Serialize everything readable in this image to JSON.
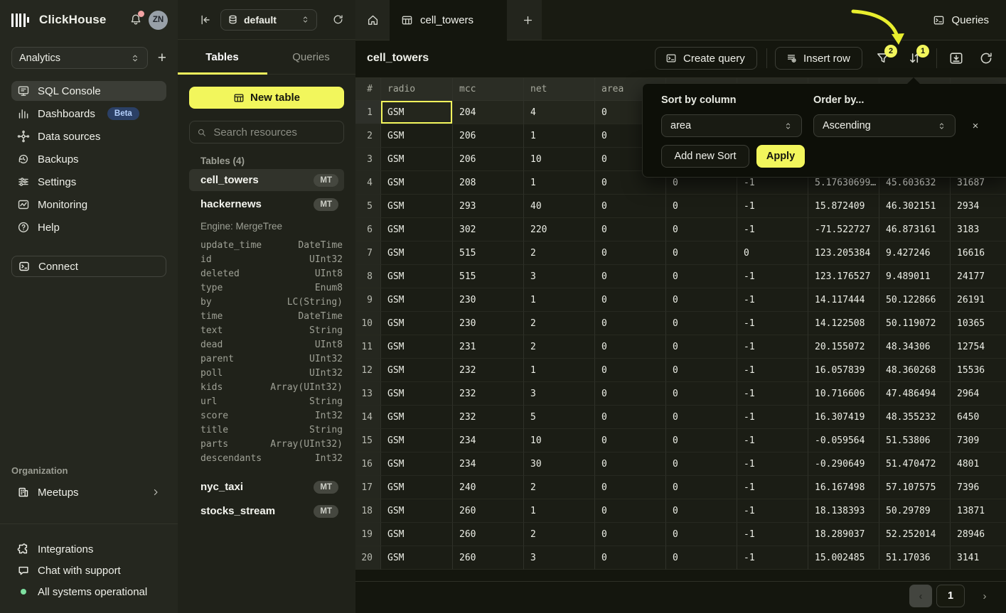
{
  "colors": {
    "accent": "#f2f65c",
    "beta_badge_bg": "#2b4066",
    "status_green": "#7ee0a0",
    "annotation_arrow": "#e8ee2e"
  },
  "brand": {
    "name": "ClickHouse",
    "avatar": "ZN",
    "workspace": "Analytics"
  },
  "sidebar": {
    "items": [
      {
        "label": "SQL Console",
        "icon": "sql-console-icon",
        "active": true
      },
      {
        "label": "Dashboards",
        "icon": "dashboards-icon",
        "badge": "Beta"
      },
      {
        "label": "Data sources",
        "icon": "data-sources-icon"
      },
      {
        "label": "Backups",
        "icon": "backups-icon"
      },
      {
        "label": "Settings",
        "icon": "settings-icon"
      },
      {
        "label": "Monitoring",
        "icon": "monitoring-icon"
      },
      {
        "label": "Help",
        "icon": "help-icon"
      }
    ],
    "connect_label": "Connect",
    "org_label": "Organization",
    "meetups_label": "Meetups",
    "footer_items": [
      {
        "label": "Integrations",
        "icon": "integrations-icon"
      },
      {
        "label": "Chat with support",
        "icon": "chat-icon"
      },
      {
        "label": "All systems operational",
        "icon": "status-dot"
      }
    ]
  },
  "explorer": {
    "database": "default",
    "tabs": [
      {
        "label": "Tables",
        "active": true
      },
      {
        "label": "Queries",
        "active": false
      }
    ],
    "new_table_label": "New table",
    "search_placeholder": "Search resources",
    "section_label": "Tables (4)",
    "tables": [
      {
        "name": "cell_towers",
        "badge": "MT",
        "selected": true
      },
      {
        "name": "hackernews",
        "badge": "MT",
        "engine": "Engine: MergeTree",
        "columns": [
          {
            "name": "update_time",
            "type": "DateTime"
          },
          {
            "name": "id",
            "type": "UInt32"
          },
          {
            "name": "deleted",
            "type": "UInt8"
          },
          {
            "name": "type",
            "type": "Enum8"
          },
          {
            "name": "by",
            "type": "LC(String)"
          },
          {
            "name": "time",
            "type": "DateTime"
          },
          {
            "name": "text",
            "type": "String"
          },
          {
            "name": "dead",
            "type": "UInt8"
          },
          {
            "name": "parent",
            "type": "UInt32"
          },
          {
            "name": "poll",
            "type": "UInt32"
          },
          {
            "name": "kids",
            "type": "Array(UInt32)"
          },
          {
            "name": "url",
            "type": "String"
          },
          {
            "name": "score",
            "type": "Int32"
          },
          {
            "name": "title",
            "type": "String"
          },
          {
            "name": "parts",
            "type": "Array(UInt32)"
          },
          {
            "name": "descendants",
            "type": "Int32"
          }
        ]
      },
      {
        "name": "nyc_taxi",
        "badge": "MT"
      },
      {
        "name": "stocks_stream",
        "badge": "MT"
      }
    ]
  },
  "main": {
    "open_tab": "cell_towers",
    "queries_button": "Queries",
    "title": "cell_towers",
    "toolbar": {
      "create_query": "Create query",
      "insert_row": "Insert row",
      "filter_badge": "2",
      "sort_badge": "1"
    },
    "grid": {
      "headers": [
        "#",
        "radio",
        "mcc",
        "net",
        "area",
        "",
        "",
        "",
        "",
        ""
      ],
      "rows": [
        [
          "1",
          "GSM",
          "204",
          "4",
          "0",
          "",
          "",
          "",
          "",
          ""
        ],
        [
          "2",
          "GSM",
          "206",
          "1",
          "0",
          "",
          "",
          "",
          "",
          ""
        ],
        [
          "3",
          "GSM",
          "206",
          "10",
          "0",
          "",
          "",
          "",
          "",
          ""
        ],
        [
          "4",
          "GSM",
          "208",
          "1",
          "0",
          "0",
          "-1",
          "5.17630699…",
          "45.603632",
          "31687"
        ],
        [
          "5",
          "GSM",
          "293",
          "40",
          "0",
          "0",
          "-1",
          "15.872409",
          "46.302151",
          "2934"
        ],
        [
          "6",
          "GSM",
          "302",
          "220",
          "0",
          "0",
          "-1",
          "-71.522727",
          "46.873161",
          "3183"
        ],
        [
          "7",
          "GSM",
          "515",
          "2",
          "0",
          "0",
          "0",
          "123.205384",
          "9.427246",
          "16616"
        ],
        [
          "8",
          "GSM",
          "515",
          "3",
          "0",
          "0",
          "-1",
          "123.176527",
          "9.489011",
          "24177"
        ],
        [
          "9",
          "GSM",
          "230",
          "1",
          "0",
          "0",
          "-1",
          "14.117444",
          "50.122866",
          "26191"
        ],
        [
          "10",
          "GSM",
          "230",
          "2",
          "0",
          "0",
          "-1",
          "14.122508",
          "50.119072",
          "10365"
        ],
        [
          "11",
          "GSM",
          "231",
          "2",
          "0",
          "0",
          "-1",
          "20.155072",
          "48.34306",
          "12754"
        ],
        [
          "12",
          "GSM",
          "232",
          "1",
          "0",
          "0",
          "-1",
          "16.057839",
          "48.360268",
          "15536"
        ],
        [
          "13",
          "GSM",
          "232",
          "3",
          "0",
          "0",
          "-1",
          "10.716606",
          "47.486494",
          "2964"
        ],
        [
          "14",
          "GSM",
          "232",
          "5",
          "0",
          "0",
          "-1",
          "16.307419",
          "48.355232",
          "6450"
        ],
        [
          "15",
          "GSM",
          "234",
          "10",
          "0",
          "0",
          "-1",
          "-0.059564",
          "51.53806",
          "7309"
        ],
        [
          "16",
          "GSM",
          "234",
          "30",
          "0",
          "0",
          "-1",
          "-0.290649",
          "51.470472",
          "4801"
        ],
        [
          "17",
          "GSM",
          "240",
          "2",
          "0",
          "0",
          "-1",
          "16.167498",
          "57.107575",
          "7396"
        ],
        [
          "18",
          "GSM",
          "260",
          "1",
          "0",
          "0",
          "-1",
          "18.138393",
          "50.29789",
          "13871"
        ],
        [
          "19",
          "GSM",
          "260",
          "2",
          "0",
          "0",
          "-1",
          "18.289037",
          "52.252014",
          "28946"
        ],
        [
          "20",
          "GSM",
          "260",
          "3",
          "0",
          "0",
          "-1",
          "15.002485",
          "51.17036",
          "3141"
        ]
      ],
      "selected_row_index": 0,
      "selected_cell": {
        "row": 0,
        "col": 1
      }
    },
    "sort_popup": {
      "sort_label": "Sort by column",
      "sort_value": "area",
      "order_label": "Order by...",
      "order_value": "Ascending",
      "add_button": "Add new Sort",
      "apply_button": "Apply",
      "close": "×"
    },
    "pagination": {
      "prev": "‹",
      "page": "1",
      "next": "›"
    }
  }
}
